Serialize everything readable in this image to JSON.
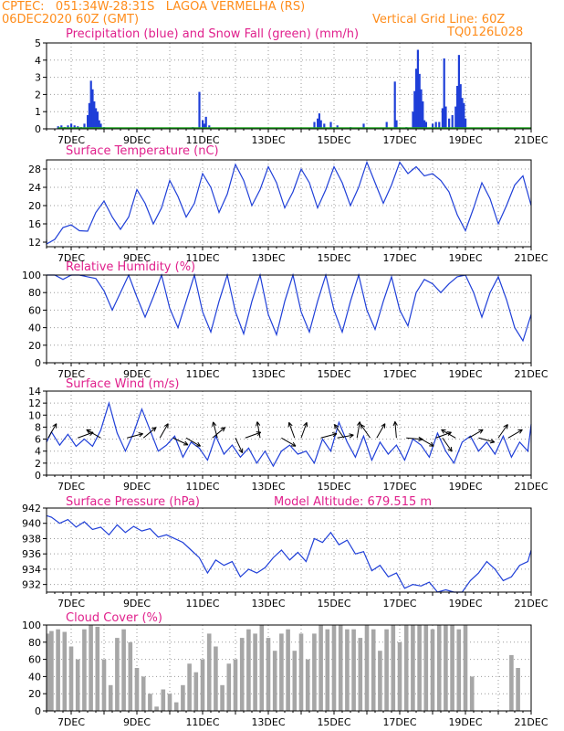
{
  "header": {
    "line1": "CPTEC:   051:34W-28:31S   LAGOA VERMELHA (RS)",
    "line2": "06DEC2020 60Z (GMT)",
    "vgrid": "Vertical Grid Line: 60Z",
    "code": "TQ0126L028"
  },
  "colors": {
    "header": "#ff8c1a",
    "title": "#e0208c",
    "line": "#1f3fd8",
    "snow": "#22aa22",
    "cloud": "#a6a6a6"
  },
  "x_ticks": [
    "7DEC",
    "9DEC",
    "11DEC",
    "13DEC",
    "15DEC",
    "17DEC",
    "19DEC",
    "21DEC"
  ],
  "chart_data": [
    {
      "id": "precip",
      "type": "bar",
      "title": "Precipitation (blue) and Snow Fall (green) (mm/h)",
      "ylim": [
        0,
        5
      ],
      "yticks": [
        0,
        1,
        2,
        3,
        4,
        5
      ],
      "grid": true,
      "series": [
        {
          "name": "Precipitation",
          "color": "#1f3fd8",
          "points": [
            [
              6.6,
              0.15
            ],
            [
              6.7,
              0.2
            ],
            [
              6.8,
              0.1
            ],
            [
              6.9,
              0.2
            ],
            [
              7.0,
              0.3
            ],
            [
              7.1,
              0.2
            ],
            [
              7.2,
              0.15
            ],
            [
              7.3,
              0.1
            ],
            [
              7.4,
              0.3
            ],
            [
              7.5,
              0.8
            ],
            [
              7.55,
              1.5
            ],
            [
              7.6,
              2.8
            ],
            [
              7.65,
              2.3
            ],
            [
              7.7,
              1.6
            ],
            [
              7.75,
              1.2
            ],
            [
              7.8,
              1.0
            ],
            [
              7.85,
              0.5
            ],
            [
              7.9,
              0.3
            ],
            [
              8.0,
              0.1
            ],
            [
              10.7,
              0.1
            ],
            [
              10.9,
              2.15
            ],
            [
              11.0,
              0.5
            ],
            [
              11.05,
              0.3
            ],
            [
              11.1,
              0.7
            ],
            [
              11.2,
              0.2
            ],
            [
              14.4,
              0.4
            ],
            [
              14.5,
              0.6
            ],
            [
              14.55,
              0.9
            ],
            [
              14.6,
              0.5
            ],
            [
              14.7,
              0.3
            ],
            [
              14.9,
              0.4
            ],
            [
              15.1,
              0.2
            ],
            [
              15.5,
              0.1
            ],
            [
              15.9,
              0.3
            ],
            [
              16.6,
              0.4
            ],
            [
              16.85,
              2.75
            ],
            [
              16.9,
              0.5
            ],
            [
              17.2,
              0.1
            ],
            [
              17.4,
              1.0
            ],
            [
              17.45,
              2.2
            ],
            [
              17.5,
              3.5
            ],
            [
              17.55,
              4.6
            ],
            [
              17.6,
              3.2
            ],
            [
              17.65,
              2.3
            ],
            [
              17.7,
              1.6
            ],
            [
              17.75,
              0.5
            ],
            [
              17.8,
              0.4
            ],
            [
              18.0,
              0.3
            ],
            [
              18.1,
              0.4
            ],
            [
              18.2,
              0.4
            ],
            [
              18.3,
              1.2
            ],
            [
              18.35,
              4.1
            ],
            [
              18.4,
              1.3
            ],
            [
              18.5,
              0.6
            ],
            [
              18.6,
              0.8
            ],
            [
              18.7,
              1.3
            ],
            [
              18.75,
              2.5
            ],
            [
              18.8,
              4.3
            ],
            [
              18.85,
              2.6
            ],
            [
              18.9,
              1.8
            ],
            [
              18.95,
              1.5
            ],
            [
              19.0,
              0.6
            ]
          ]
        },
        {
          "name": "Snow Fall",
          "color": "#22aa22",
          "points": [
            [
              6.6,
              0.05
            ],
            [
              21.0,
              0.05
            ]
          ]
        }
      ]
    },
    {
      "id": "temp",
      "type": "line",
      "title": "Surface Temperature (nC)",
      "ylim": [
        11,
        30
      ],
      "yticks": [
        12,
        16,
        20,
        24,
        28
      ],
      "grid": true,
      "x": [
        6.15,
        6.25,
        6.5,
        6.75,
        7.0,
        7.25,
        7.5,
        7.75,
        8.0,
        8.25,
        8.5,
        8.75,
        9.0,
        9.25,
        9.5,
        9.75,
        10.0,
        10.25,
        10.5,
        10.75,
        11.0,
        11.25,
        11.5,
        11.75,
        12.0,
        12.25,
        12.5,
        12.75,
        13.0,
        13.25,
        13.5,
        13.75,
        14.0,
        14.25,
        14.5,
        14.75,
        15.0,
        15.25,
        15.5,
        15.75,
        16.0,
        16.25,
        16.5,
        16.75,
        17.0,
        17.25,
        17.5,
        17.75,
        18.0,
        18.25,
        18.5,
        18.75,
        19.0,
        19.25,
        19.5,
        19.75,
        20.0,
        20.25,
        20.5,
        20.75,
        21.0
      ],
      "y": [
        12.5,
        11.6,
        12.6,
        15.2,
        15.8,
        14.5,
        14.4,
        18.5,
        21.0,
        17.5,
        14.8,
        17.5,
        23.5,
        20.5,
        16.0,
        19.5,
        25.5,
        22.0,
        17.5,
        20.5,
        27.0,
        24.0,
        18.5,
        22.5,
        29.0,
        25.5,
        20.0,
        23.5,
        28.5,
        25.0,
        19.5,
        23.0,
        28.0,
        25.0,
        19.5,
        23.5,
        28.5,
        25.0,
        20.0,
        24.0,
        29.5,
        25.0,
        20.5,
        24.5,
        29.5,
        27.0,
        28.5,
        26.5,
        27.0,
        25.5,
        23.0,
        18.0,
        14.5,
        19.5,
        25.0,
        21.5,
        16.0,
        20.0,
        24.5,
        26.5,
        20.0
      ]
    },
    {
      "id": "rh",
      "type": "line",
      "title": "Relative Humidity (%)",
      "ylim": [
        0,
        100
      ],
      "yticks": [
        0,
        20,
        40,
        60,
        80,
        100
      ],
      "grid": true,
      "x": [
        6.15,
        6.5,
        6.75,
        7.0,
        7.25,
        7.5,
        7.75,
        8.0,
        8.25,
        8.5,
        8.75,
        9.0,
        9.25,
        9.5,
        9.75,
        10.0,
        10.25,
        10.5,
        10.75,
        11.0,
        11.25,
        11.5,
        11.75,
        12.0,
        12.25,
        12.5,
        12.75,
        13.0,
        13.25,
        13.5,
        13.75,
        14.0,
        14.25,
        14.5,
        14.75,
        15.0,
        15.25,
        15.5,
        15.75,
        16.0,
        16.25,
        16.5,
        16.75,
        17.0,
        17.25,
        17.5,
        17.75,
        18.0,
        18.25,
        18.5,
        18.75,
        19.0,
        19.25,
        19.5,
        19.75,
        20.0,
        20.25,
        20.5,
        20.75,
        21.0
      ],
      "y": [
        100,
        100,
        95,
        100,
        100,
        98,
        96,
        82,
        60,
        80,
        100,
        75,
        52,
        75,
        100,
        62,
        40,
        70,
        100,
        58,
        35,
        70,
        100,
        58,
        33,
        70,
        100,
        55,
        32,
        70,
        100,
        58,
        35,
        70,
        100,
        60,
        35,
        70,
        100,
        60,
        38,
        70,
        98,
        60,
        42,
        80,
        95,
        90,
        80,
        90,
        98,
        100,
        80,
        52,
        80,
        98,
        72,
        40,
        25,
        55
      ]
    },
    {
      "id": "wind",
      "type": "line",
      "title": "Surface Wind (m/s)",
      "ylim": [
        0,
        14
      ],
      "yticks": [
        0,
        2,
        4,
        6,
        8,
        10,
        12,
        14
      ],
      "grid": true,
      "x": [
        6.15,
        6.4,
        6.65,
        6.9,
        7.15,
        7.4,
        7.65,
        7.9,
        8.15,
        8.4,
        8.65,
        8.9,
        9.15,
        9.4,
        9.65,
        9.9,
        10.15,
        10.4,
        10.65,
        10.9,
        11.15,
        11.4,
        11.65,
        11.9,
        12.15,
        12.4,
        12.65,
        12.9,
        13.15,
        13.4,
        13.65,
        13.9,
        14.15,
        14.4,
        14.65,
        14.9,
        15.15,
        15.4,
        15.65,
        15.9,
        16.15,
        16.4,
        16.65,
        16.9,
        17.15,
        17.4,
        17.65,
        17.9,
        18.15,
        18.4,
        18.65,
        18.9,
        19.15,
        19.4,
        19.65,
        19.9,
        20.15,
        20.4,
        20.65,
        20.9,
        21.0
      ],
      "y": [
        5.5,
        7.2,
        5.0,
        6.8,
        4.8,
        6.0,
        4.8,
        7.5,
        12.0,
        7.0,
        4.0,
        7.0,
        11.0,
        7.5,
        4.0,
        5.0,
        6.5,
        3.0,
        5.5,
        4.5,
        2.5,
        6.5,
        3.5,
        5.0,
        3.0,
        4.5,
        2.0,
        4.0,
        1.5,
        4.0,
        5.0,
        3.5,
        4.0,
        2.0,
        6.0,
        4.0,
        8.8,
        5.5,
        3.0,
        6.5,
        2.5,
        5.5,
        3.5,
        5.0,
        2.5,
        6.0,
        5.0,
        3.0,
        7.0,
        4.0,
        2.0,
        5.5,
        6.5,
        4.0,
        5.5,
        3.5,
        6.5,
        3.0,
        5.5,
        4.0,
        8.5
      ],
      "barbs": [
        [
          6.3,
          60
        ],
        [
          7.2,
          20
        ],
        [
          7.9,
          150
        ],
        [
          8.7,
          15
        ],
        [
          9.2,
          40
        ],
        [
          9.7,
          60
        ],
        [
          10.1,
          -25
        ],
        [
          10.5,
          -30
        ],
        [
          11.3,
          40
        ],
        [
          11.45,
          105
        ],
        [
          12.0,
          -65
        ],
        [
          12.3,
          20
        ],
        [
          12.75,
          100
        ],
        [
          13.4,
          -30
        ],
        [
          13.8,
          110
        ],
        [
          14.0,
          70
        ],
        [
          14.6,
          15
        ],
        [
          15.1,
          10
        ],
        [
          15.3,
          125
        ],
        [
          15.7,
          80
        ],
        [
          16.1,
          125
        ],
        [
          16.3,
          60
        ],
        [
          16.9,
          95
        ],
        [
          17.2,
          -5
        ],
        [
          17.6,
          -30
        ],
        [
          18.1,
          20
        ],
        [
          18.3,
          -55
        ],
        [
          18.7,
          150
        ],
        [
          19.1,
          30
        ],
        [
          19.4,
          -15
        ],
        [
          20.0,
          55
        ],
        [
          20.3,
          30
        ]
      ]
    },
    {
      "id": "pressure",
      "type": "line",
      "title": "Surface Pressure (hPa)",
      "annotation": "Model Altitude: 679.515 m",
      "ylim": [
        931,
        942
      ],
      "yticks": [
        932,
        934,
        936,
        938,
        940,
        942
      ],
      "grid": true,
      "x": [
        6.15,
        6.4,
        6.65,
        6.9,
        7.15,
        7.4,
        7.65,
        7.9,
        8.15,
        8.4,
        8.65,
        8.9,
        9.15,
        9.4,
        9.65,
        9.9,
        10.15,
        10.4,
        10.65,
        10.9,
        11.15,
        11.4,
        11.65,
        11.9,
        12.15,
        12.4,
        12.65,
        12.9,
        13.15,
        13.4,
        13.65,
        13.9,
        14.15,
        14.4,
        14.65,
        14.9,
        15.15,
        15.4,
        15.65,
        15.9,
        16.15,
        16.4,
        16.65,
        16.9,
        17.15,
        17.4,
        17.65,
        17.9,
        18.15,
        18.4,
        18.65,
        18.9,
        19.15,
        19.4,
        19.65,
        19.9,
        20.15,
        20.4,
        20.65,
        20.9,
        21.0
      ],
      "y": [
        941.0,
        940.8,
        940.0,
        940.5,
        939.5,
        940.2,
        939.2,
        939.5,
        938.5,
        939.8,
        938.8,
        939.6,
        939.0,
        939.3,
        938.2,
        938.5,
        938.0,
        937.5,
        936.5,
        935.5,
        933.5,
        935.2,
        934.5,
        935.0,
        933.0,
        934.0,
        933.5,
        934.2,
        935.5,
        936.5,
        935.2,
        936.2,
        935.0,
        938.0,
        937.5,
        938.8,
        937.2,
        937.8,
        936.0,
        936.3,
        933.8,
        934.5,
        933.0,
        933.5,
        931.5,
        932.0,
        931.8,
        932.3,
        931.0,
        931.3,
        930.8,
        931.0,
        932.5,
        933.5,
        935.0,
        934.0,
        932.5,
        933.0,
        934.5,
        935.0,
        936.5
      ]
    },
    {
      "id": "cloud",
      "type": "bar",
      "title": "Cloud Cover (%)",
      "ylim": [
        0,
        100
      ],
      "yticks": [
        0,
        20,
        40,
        60,
        80,
        100
      ],
      "grid": true,
      "x": [
        6.2,
        6.4,
        6.6,
        6.8,
        7.0,
        7.2,
        7.4,
        7.6,
        7.8,
        8.0,
        8.2,
        8.4,
        8.6,
        8.8,
        9.0,
        9.2,
        9.4,
        9.6,
        9.8,
        10.0,
        10.2,
        10.4,
        10.6,
        10.8,
        11.0,
        11.2,
        11.4,
        11.6,
        11.8,
        12.0,
        12.2,
        12.4,
        12.6,
        12.8,
        13.0,
        13.2,
        13.4,
        13.6,
        13.8,
        14.0,
        14.2,
        14.4,
        14.6,
        14.8,
        15.0,
        15.2,
        15.4,
        15.6,
        15.8,
        16.0,
        16.2,
        16.4,
        16.6,
        16.8,
        17.0,
        17.2,
        17.4,
        17.6,
        17.8,
        18.0,
        18.2,
        18.4,
        18.6,
        18.8,
        19.0,
        19.2,
        19.4,
        19.6,
        19.8,
        20.0,
        20.2,
        20.4,
        20.6,
        20.8,
        21.0
      ],
      "y": [
        90,
        93,
        95,
        92,
        75,
        60,
        95,
        100,
        98,
        60,
        30,
        85,
        95,
        80,
        50,
        40,
        20,
        5,
        25,
        20,
        10,
        30,
        55,
        45,
        60,
        90,
        75,
        30,
        55,
        60,
        85,
        95,
        90,
        100,
        85,
        70,
        90,
        95,
        70,
        90,
        60,
        90,
        100,
        95,
        100,
        100,
        95,
        95,
        85,
        100,
        95,
        70,
        95,
        100,
        80,
        100,
        100,
        100,
        100,
        95,
        100,
        100,
        100,
        95,
        100,
        40,
        0,
        0,
        0,
        0,
        0,
        65,
        50,
        0,
        0
      ]
    }
  ]
}
